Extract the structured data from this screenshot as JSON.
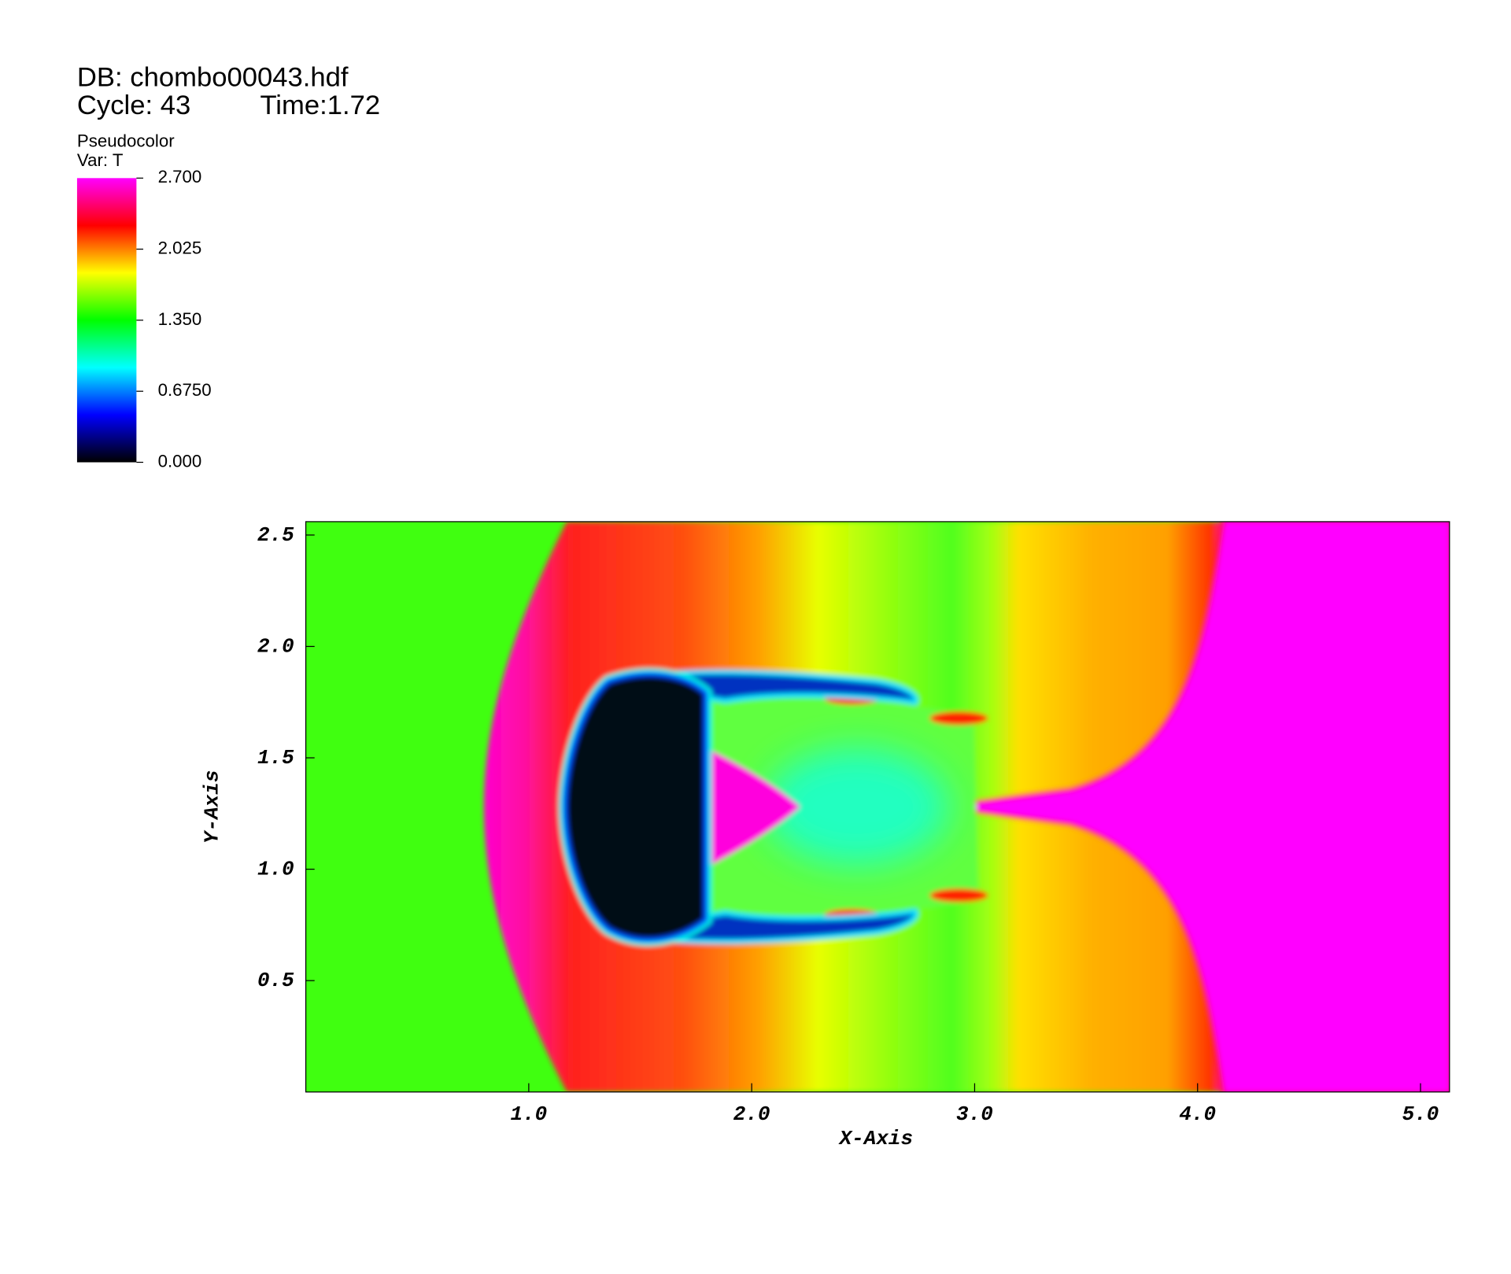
{
  "chart_data": {
    "type": "pseudocolor",
    "title": "DB: chombo00043.hdf",
    "cycle_label": "Cycle: 43",
    "time_label": "Time:1.72",
    "plot_name": "Pseudocolor",
    "variable": "Var: T",
    "xlabel": "X-Axis",
    "ylabel": "Y-Axis",
    "xlim": [
      0,
      5.13
    ],
    "ylim": [
      0,
      2.56
    ],
    "xticks": [
      {
        "value": 1,
        "label": "1.0"
      },
      {
        "value": 2,
        "label": "2.0"
      },
      {
        "value": 3,
        "label": "3.0"
      },
      {
        "value": 4,
        "label": "4.0"
      },
      {
        "value": 5,
        "label": "5.0"
      }
    ],
    "yticks": [
      0.5,
      {
        "value": 1,
        "label": "1.0"
      },
      1.5,
      {
        "value": 2,
        "label": "2.0"
      },
      2.5
    ],
    "colorbar": {
      "lim": [
        0,
        2.7
      ],
      "ticks": [
        {
          "value": 2.7,
          "label": "2.700"
        },
        {
          "value": 2.025,
          "label": "2.025"
        },
        {
          "value": 1.35,
          "label": "1.350"
        },
        {
          "value": 0.675,
          "label": "0.6750"
        },
        {
          "value": 0,
          "label": "0.000"
        }
      ],
      "colors": [
        "#000000",
        "#0000ff",
        "#00ffff",
        "#00ff00",
        "#ffff00",
        "#ff0000",
        "#ff00ff"
      ]
    }
  }
}
